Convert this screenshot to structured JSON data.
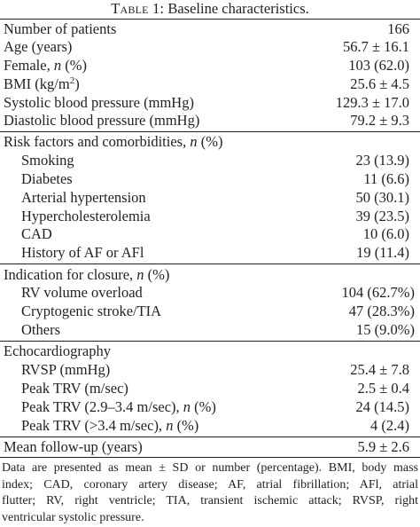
{
  "table": {
    "caption_label": "Table 1:",
    "caption_text": "Baseline characteristics.",
    "rows": [
      {
        "label": "Number of patients",
        "value": "166"
      },
      {
        "label": "Age (years)",
        "value": "56.7 ± 16.1"
      },
      {
        "label": "Female, n (%)",
        "value": "103 (62.0)"
      },
      {
        "label": "BMI (kg/m2)",
        "value": "25.6 ± 4.5"
      },
      {
        "label": "Systolic blood pressure (mmHg)",
        "value": "129.3 ± 17.0"
      },
      {
        "label": "Diastolic blood pressure (mmHg)",
        "value": "79.2 ± 9.3"
      },
      {
        "label": "Risk factors and comorbidities, n (%)",
        "value": ""
      },
      {
        "label": "Smoking",
        "value": "23 (13.9)"
      },
      {
        "label": "Diabetes",
        "value": "11 (6.6)"
      },
      {
        "label": "Arterial hypertension",
        "value": "50 (30.1)"
      },
      {
        "label": "Hypercholesterolemia",
        "value": "39 (23.5)"
      },
      {
        "label": "CAD",
        "value": "10 (6.0)"
      },
      {
        "label": "History of AF or AFl",
        "value": "19 (11.4)"
      },
      {
        "label": "Indication for closure, n (%)",
        "value": ""
      },
      {
        "label": "RV volume overload",
        "value": "104 (62.7%)"
      },
      {
        "label": "Cryptogenic stroke/TIA",
        "value": "47 (28.3%)"
      },
      {
        "label": "Others",
        "value": "15 (9.0%)"
      },
      {
        "label": "Echocardiography",
        "value": ""
      },
      {
        "label": "RVSP (mmHg)",
        "value": "25.4 ± 7.8"
      },
      {
        "label": "Peak TRV (m/sec)",
        "value": "2.5 ± 0.4"
      },
      {
        "label": "Peak TRV (2.9–3.4 m/sec), n (%)",
        "value": "24 (14.5)"
      },
      {
        "label": "Peak TRV (>3.4 m/sec), n (%)",
        "value": "4 (2.4)"
      },
      {
        "label": "Mean follow-up (years)",
        "value": "5.9 ± 2.6"
      }
    ],
    "footnote_lines": [
      "Data are presented as mean ± SD or number (percentage). BMI, body mass",
      "index; CAD, coronary artery disease; AF, atrial fibrillation; AFl, atrial",
      "flutter; RV, right ventricle; TIA, transient ischemic attack; RVSP, right",
      "ventricular systolic pressure."
    ]
  }
}
